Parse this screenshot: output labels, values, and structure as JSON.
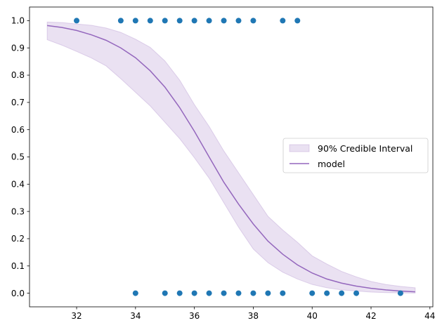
{
  "chart_data": {
    "type": "line",
    "title": "",
    "xlabel": "",
    "ylabel": "",
    "xlim": [
      30.4,
      44.1
    ],
    "ylim": [
      -0.05,
      1.05
    ],
    "xticks": [
      "32",
      "34",
      "36",
      "38",
      "40",
      "42",
      "44"
    ],
    "yticks": [
      "0.0",
      "0.1",
      "0.2",
      "0.3",
      "0.4",
      "0.5",
      "0.6",
      "0.7",
      "0.8",
      "0.9",
      "1.0"
    ],
    "grid": false,
    "legend_position": "center-right",
    "series": [
      {
        "name": "model",
        "kind": "line",
        "color": "#9467bd",
        "x": [
          31,
          31.5,
          32,
          32.5,
          33,
          33.5,
          34,
          34.5,
          35,
          35.5,
          36,
          36.5,
          37,
          37.5,
          38,
          38.5,
          39,
          39.5,
          40,
          40.5,
          41,
          41.5,
          42,
          42.5,
          43,
          43.5
        ],
        "y": [
          0.982,
          0.975,
          0.964,
          0.948,
          0.928,
          0.9,
          0.864,
          0.816,
          0.756,
          0.681,
          0.594,
          0.5,
          0.407,
          0.327,
          0.254,
          0.191,
          0.143,
          0.104,
          0.074,
          0.052,
          0.037,
          0.026,
          0.018,
          0.012,
          0.008,
          0.005
        ]
      },
      {
        "name": "90% Credible Interval",
        "kind": "band",
        "color": "#9467bd",
        "x": [
          31,
          31.5,
          32,
          32.5,
          33,
          33.5,
          34,
          34.5,
          35,
          35.5,
          36,
          36.5,
          37,
          37.5,
          38,
          38.5,
          39,
          39.5,
          40,
          40.5,
          41,
          41.5,
          42,
          42.5,
          43,
          43.5
        ],
        "lower": [
          0.93,
          0.91,
          0.887,
          0.863,
          0.834,
          0.787,
          0.737,
          0.687,
          0.627,
          0.567,
          0.497,
          0.422,
          0.332,
          0.242,
          0.162,
          0.112,
          0.077,
          0.052,
          0.032,
          0.02,
          0.012,
          0.008,
          0.004,
          0.002,
          0.001,
          0.0005
        ],
        "upper": [
          0.995,
          0.993,
          0.988,
          0.983,
          0.973,
          0.957,
          0.932,
          0.902,
          0.852,
          0.782,
          0.692,
          0.612,
          0.522,
          0.442,
          0.362,
          0.282,
          0.232,
          0.187,
          0.137,
          0.107,
          0.08,
          0.06,
          0.043,
          0.032,
          0.025,
          0.02
        ]
      },
      {
        "name": "",
        "kind": "scatter",
        "color": "#1f77b4",
        "x": [
          32,
          33.5,
          34,
          34.5,
          35,
          35.5,
          36,
          36.5,
          37,
          37.5,
          38,
          39,
          39.5,
          34,
          35,
          35.5,
          36,
          36.5,
          37,
          37.5,
          38,
          38.5,
          39,
          40,
          40.5,
          41,
          41.5,
          43
        ],
        "y": [
          1,
          1,
          1,
          1,
          1,
          1,
          1,
          1,
          1,
          1,
          1,
          1,
          1,
          0,
          0,
          0,
          0,
          0,
          0,
          0,
          0,
          0,
          0,
          0,
          0,
          0,
          0,
          0
        ]
      }
    ],
    "legend": [
      {
        "label": "90% Credible Interval",
        "kind": "band"
      },
      {
        "label": "model",
        "kind": "line"
      }
    ]
  }
}
